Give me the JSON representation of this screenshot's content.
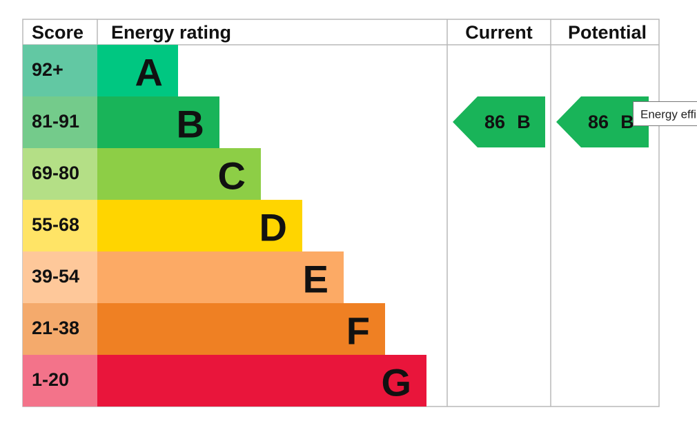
{
  "header": {
    "score": "Score",
    "rating": "Energy rating",
    "current": "Current",
    "potential": "Potential"
  },
  "bands": [
    {
      "score": "92+",
      "letter": "A"
    },
    {
      "score": "81-91",
      "letter": "B"
    },
    {
      "score": "69-80",
      "letter": "C"
    },
    {
      "score": "55-68",
      "letter": "D"
    },
    {
      "score": "39-54",
      "letter": "E"
    },
    {
      "score": "21-38",
      "letter": "F"
    },
    {
      "score": "1-20",
      "letter": "G"
    }
  ],
  "current": {
    "score": 86,
    "letter": "B"
  },
  "potential": {
    "score": 86,
    "letter": "B"
  },
  "tooltip": "Energy effi"
}
